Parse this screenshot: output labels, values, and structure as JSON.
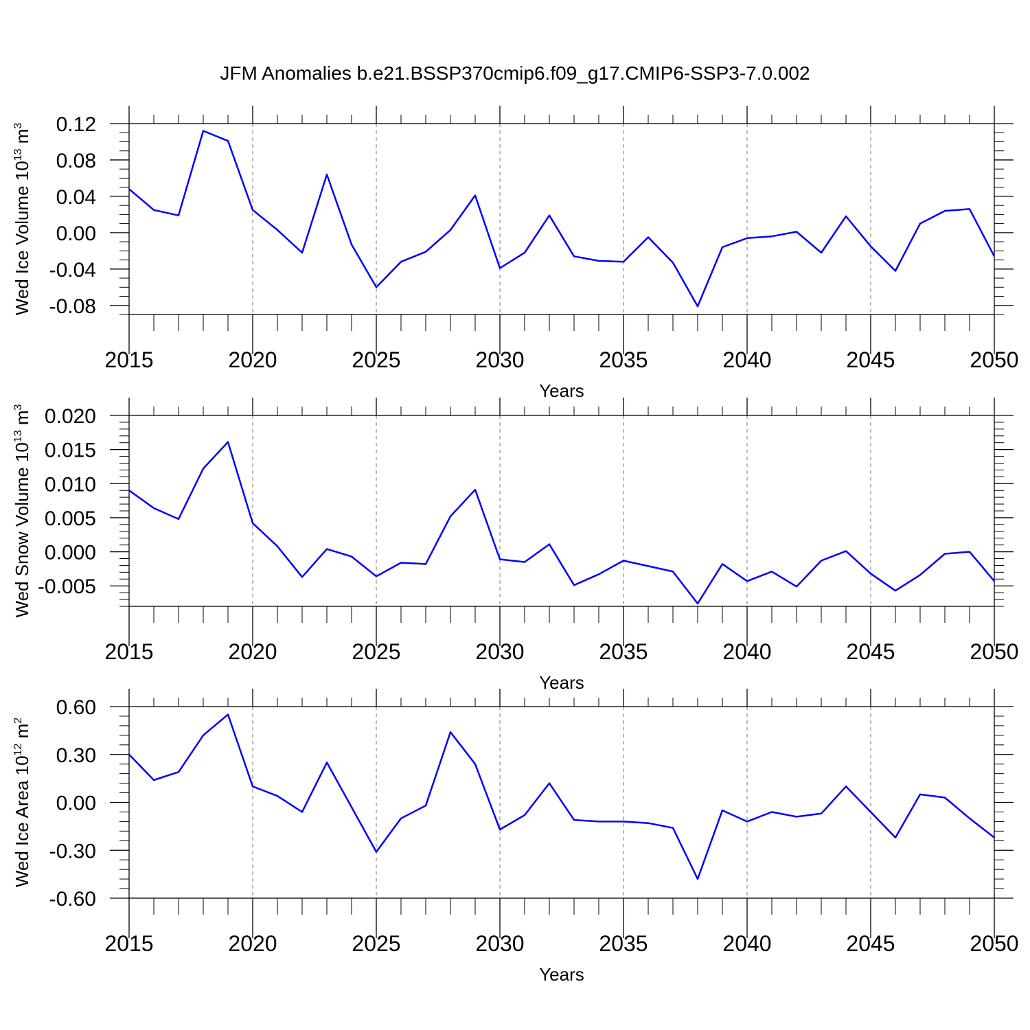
{
  "figure": {
    "title": "JFM Anomalies b.e21.BSSP370cmip6.f09_g17.CMIP6-SSP3-7.0.002",
    "line_color": "#0000ff"
  },
  "chart_data": [
    {
      "type": "line",
      "ylabel": "Wed Ice Volume 10",
      "ylabel_exp": "13",
      "ylabel_unit": " m",
      "ylabel_unit_exp": "3",
      "xlabel": "Years",
      "xlim": [
        2015,
        2050
      ],
      "ylim": [
        -0.09,
        0.12
      ],
      "y_ticks": [
        0.12,
        0.08,
        0.04,
        0.0,
        -0.04,
        -0.08
      ],
      "y_tick_labels": [
        "0.12",
        "0.08",
        "0.04",
        "0.00",
        "-0.04",
        "-0.08"
      ],
      "y_minor_step": 0.01,
      "x_ticks": [
        2015,
        2020,
        2025,
        2030,
        2035,
        2040,
        2045,
        2050
      ],
      "x_tick_labels": [
        "2015",
        "2020",
        "2025",
        "2030",
        "2035",
        "2040",
        "2045",
        "2050"
      ],
      "x": [
        2015,
        2016,
        2017,
        2018,
        2019,
        2020,
        2021,
        2022,
        2023,
        2024,
        2025,
        2026,
        2027,
        2028,
        2029,
        2030,
        2031,
        2032,
        2033,
        2034,
        2035,
        2036,
        2037,
        2038,
        2039,
        2040,
        2041,
        2042,
        2043,
        2044,
        2045,
        2046,
        2047,
        2048,
        2049,
        2050
      ],
      "series": [
        {
          "values": [
            0.048,
            0.025,
            0.019,
            0.112,
            0.101,
            0.025,
            0.003,
            -0.022,
            0.064,
            -0.013,
            -0.06,
            -0.032,
            -0.021,
            0.003,
            0.041,
            -0.039,
            -0.022,
            0.019,
            -0.026,
            -0.031,
            -0.032,
            -0.005,
            -0.033,
            -0.081,
            -0.016,
            -0.006,
            -0.004,
            0.001,
            -0.022,
            0.018,
            -0.015,
            -0.042,
            0.01,
            0.024,
            0.026,
            -0.026
          ]
        }
      ]
    },
    {
      "type": "line",
      "ylabel": "Wed Snow Volume 10",
      "ylabel_exp": "13",
      "ylabel_unit": " m",
      "ylabel_unit_exp": "3",
      "xlabel": "Years",
      "xlim": [
        2015,
        2050
      ],
      "ylim": [
        -0.008,
        0.02
      ],
      "y_ticks": [
        0.02,
        0.015,
        0.01,
        0.005,
        0.0,
        -0.005
      ],
      "y_tick_labels": [
        "0.020",
        "0.015",
        "0.010",
        "0.005",
        "0.000",
        "-0.005"
      ],
      "y_minor_step": 0.001,
      "x_ticks": [
        2015,
        2020,
        2025,
        2030,
        2035,
        2040,
        2045,
        2050
      ],
      "x_tick_labels": [
        "2015",
        "2020",
        "2025",
        "2030",
        "2035",
        "2040",
        "2045",
        "2050"
      ],
      "x": [
        2015,
        2016,
        2017,
        2018,
        2019,
        2020,
        2021,
        2022,
        2023,
        2024,
        2025,
        2026,
        2027,
        2028,
        2029,
        2030,
        2031,
        2032,
        2033,
        2034,
        2035,
        2036,
        2037,
        2038,
        2039,
        2040,
        2041,
        2042,
        2043,
        2044,
        2045,
        2046,
        2047,
        2048,
        2049,
        2050
      ],
      "series": [
        {
          "values": [
            0.009,
            0.0064,
            0.0048,
            0.0122,
            0.0161,
            0.0042,
            0.0008,
            -0.0037,
            0.0004,
            -0.0007,
            -0.0036,
            -0.0016,
            -0.0018,
            0.0052,
            0.0091,
            -0.0011,
            -0.0015,
            0.0011,
            -0.0049,
            -0.0033,
            -0.0013,
            -0.0021,
            -0.0029,
            -0.0076,
            -0.0018,
            -0.0043,
            -0.0029,
            -0.0051,
            -0.0013,
            0.0001,
            -0.0032,
            -0.0057,
            -0.0034,
            -0.0003,
            0.0,
            -0.0043
          ]
        }
      ]
    },
    {
      "type": "line",
      "ylabel": "Wed Ice Area 10",
      "ylabel_exp": "12",
      "ylabel_unit": " m",
      "ylabel_unit_exp": "2",
      "xlabel": "Years",
      "xlim": [
        2015,
        2050
      ],
      "ylim": [
        -0.6,
        0.6
      ],
      "y_ticks": [
        0.6,
        0.3,
        0.0,
        -0.3,
        -0.6
      ],
      "y_tick_labels": [
        "0.60",
        "0.30",
        "0.00",
        "-0.30",
        "-0.60"
      ],
      "y_minor_step": 0.06,
      "x_ticks": [
        2015,
        2020,
        2025,
        2030,
        2035,
        2040,
        2045,
        2050
      ],
      "x_tick_labels": [
        "2015",
        "2020",
        "2025",
        "2030",
        "2035",
        "2040",
        "2045",
        "2050"
      ],
      "x": [
        2015,
        2016,
        2017,
        2018,
        2019,
        2020,
        2021,
        2022,
        2023,
        2024,
        2025,
        2026,
        2027,
        2028,
        2029,
        2030,
        2031,
        2032,
        2033,
        2034,
        2035,
        2036,
        2037,
        2038,
        2039,
        2040,
        2041,
        2042,
        2043,
        2044,
        2045,
        2046,
        2047,
        2048,
        2049,
        2050
      ],
      "series": [
        {
          "values": [
            0.3,
            0.14,
            0.19,
            0.42,
            0.55,
            0.1,
            0.04,
            -0.06,
            0.25,
            -0.03,
            -0.31,
            -0.1,
            -0.02,
            0.44,
            0.24,
            -0.17,
            -0.08,
            0.12,
            -0.11,
            -0.12,
            -0.12,
            -0.13,
            -0.16,
            -0.48,
            -0.05,
            -0.12,
            -0.06,
            -0.09,
            -0.07,
            0.1,
            -0.06,
            -0.22,
            0.05,
            0.03,
            -0.1,
            -0.22
          ]
        }
      ]
    }
  ]
}
